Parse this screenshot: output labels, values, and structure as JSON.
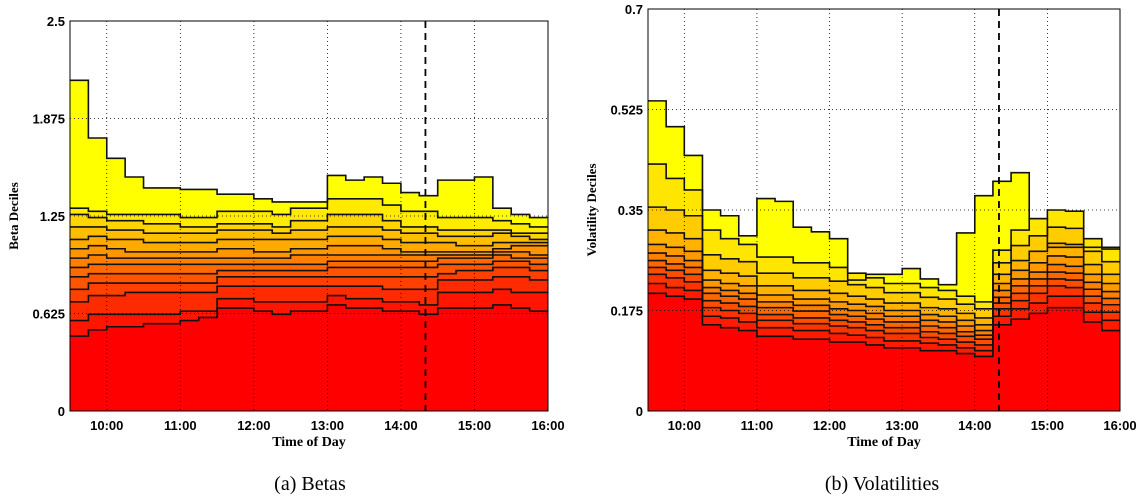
{
  "chart_data": [
    {
      "type": "area",
      "caption": "(a) Betas",
      "xlabel": "Time of Day",
      "ylabel": "Beta Deciles",
      "ylim": [
        0,
        2.5
      ],
      "yticks": [
        "0",
        "0.625",
        "1.25",
        "1.875",
        "2.5"
      ],
      "ytick_values": [
        0,
        0.625,
        1.25,
        1.875,
        2.5
      ],
      "xlim": [
        "09:30",
        "16:00"
      ],
      "xticks": [
        "10:00",
        "11:00",
        "12:00",
        "13:00",
        "14:00",
        "15:00",
        "16:00"
      ],
      "vline": "14:20",
      "grid": true,
      "x_bins": [
        "09:30",
        "09:45",
        "10:00",
        "10:15",
        "10:30",
        "10:45",
        "11:00",
        "11:15",
        "11:30",
        "11:45",
        "12:00",
        "12:15",
        "12:30",
        "12:45",
        "13:00",
        "13:15",
        "13:30",
        "13:45",
        "14:00",
        "14:15",
        "14:30",
        "14:45",
        "15:00",
        "15:15",
        "15:30",
        "15:45",
        "16:00"
      ],
      "series": [
        {
          "values": [
            0.48,
            0.52,
            0.54,
            0.54,
            0.56,
            0.56,
            0.58,
            0.6,
            0.66,
            0.66,
            0.64,
            0.62,
            0.64,
            0.64,
            0.68,
            0.66,
            0.66,
            0.64,
            0.64,
            0.62,
            0.66,
            0.66,
            0.66,
            0.68,
            0.66,
            0.64
          ]
        },
        {
          "values": [
            0.58,
            0.62,
            0.62,
            0.62,
            0.62,
            0.62,
            0.64,
            0.64,
            0.72,
            0.72,
            0.7,
            0.7,
            0.7,
            0.7,
            0.74,
            0.72,
            0.72,
            0.7,
            0.7,
            0.68,
            0.76,
            0.76,
            0.76,
            0.78,
            0.76,
            0.76
          ]
        },
        {
          "values": [
            0.7,
            0.74,
            0.74,
            0.76,
            0.76,
            0.76,
            0.76,
            0.76,
            0.8,
            0.8,
            0.8,
            0.8,
            0.8,
            0.8,
            0.8,
            0.8,
            0.8,
            0.78,
            0.78,
            0.78,
            0.84,
            0.84,
            0.84,
            0.86,
            0.86,
            0.84
          ]
        },
        {
          "values": [
            0.78,
            0.82,
            0.82,
            0.82,
            0.82,
            0.82,
            0.82,
            0.82,
            0.86,
            0.86,
            0.86,
            0.86,
            0.86,
            0.86,
            0.86,
            0.86,
            0.86,
            0.86,
            0.86,
            0.86,
            0.88,
            0.9,
            0.9,
            0.92,
            0.92,
            0.9
          ]
        },
        {
          "values": [
            0.86,
            0.88,
            0.88,
            0.88,
            0.88,
            0.88,
            0.88,
            0.88,
            0.9,
            0.9,
            0.9,
            0.9,
            0.9,
            0.9,
            0.92,
            0.92,
            0.92,
            0.92,
            0.92,
            0.92,
            0.94,
            0.94,
            0.94,
            0.96,
            0.96,
            0.94
          ]
        },
        {
          "values": [
            0.92,
            0.94,
            0.94,
            0.94,
            0.94,
            0.94,
            0.94,
            0.94,
            0.94,
            0.94,
            0.94,
            0.94,
            0.94,
            0.94,
            0.96,
            0.96,
            0.96,
            0.96,
            0.96,
            0.96,
            0.98,
            0.98,
            0.98,
            1.0,
            0.98,
            0.98
          ]
        },
        {
          "values": [
            0.98,
            1.0,
            0.98,
            0.98,
            0.98,
            0.98,
            0.98,
            0.98,
            0.98,
            0.98,
            0.98,
            0.98,
            1.0,
            1.0,
            1.0,
            1.0,
            1.0,
            1.0,
            1.0,
            1.0,
            1.0,
            1.0,
            1.0,
            1.02,
            1.02,
            1.0
          ]
        },
        {
          "values": [
            1.04,
            1.06,
            1.04,
            1.02,
            1.02,
            1.02,
            1.02,
            1.02,
            1.04,
            1.04,
            1.02,
            1.02,
            1.04,
            1.04,
            1.06,
            1.06,
            1.06,
            1.04,
            1.02,
            1.02,
            1.02,
            1.02,
            1.02,
            1.04,
            1.06,
            1.06
          ]
        },
        {
          "values": [
            1.1,
            1.12,
            1.1,
            1.1,
            1.08,
            1.08,
            1.08,
            1.08,
            1.1,
            1.1,
            1.1,
            1.1,
            1.1,
            1.1,
            1.12,
            1.12,
            1.12,
            1.1,
            1.08,
            1.08,
            1.08,
            1.06,
            1.06,
            1.08,
            1.08,
            1.08
          ]
        },
        {
          "values": [
            1.18,
            1.18,
            1.16,
            1.16,
            1.14,
            1.14,
            1.14,
            1.14,
            1.16,
            1.16,
            1.16,
            1.14,
            1.16,
            1.16,
            1.18,
            1.18,
            1.18,
            1.16,
            1.14,
            1.14,
            1.12,
            1.12,
            1.12,
            1.14,
            1.12,
            1.1
          ]
        },
        {
          "values": [
            1.26,
            1.24,
            1.22,
            1.22,
            1.2,
            1.2,
            1.18,
            1.18,
            1.2,
            1.2,
            1.2,
            1.18,
            1.22,
            1.22,
            1.26,
            1.26,
            1.26,
            1.22,
            1.18,
            1.18,
            1.16,
            1.16,
            1.16,
            1.16,
            1.14,
            1.14
          ]
        },
        {
          "values": [
            1.3,
            1.28,
            1.26,
            1.26,
            1.26,
            1.26,
            1.24,
            1.24,
            1.28,
            1.28,
            1.28,
            1.26,
            1.3,
            1.3,
            1.36,
            1.36,
            1.36,
            1.32,
            1.28,
            1.28,
            1.24,
            1.24,
            1.24,
            1.22,
            1.2,
            1.18
          ]
        },
        {
          "values": [
            2.12,
            1.75,
            1.62,
            1.5,
            1.43,
            1.43,
            1.42,
            1.42,
            1.39,
            1.39,
            1.36,
            1.34,
            1.34,
            1.34,
            1.51,
            1.48,
            1.5,
            1.46,
            1.4,
            1.38,
            1.48,
            1.48,
            1.5,
            1.3,
            1.26,
            1.24
          ]
        }
      ]
    },
    {
      "type": "area",
      "caption": "(b) Volatilities",
      "xlabel": "Time of Day",
      "ylabel": "Volatility Deciles",
      "ylim": [
        0,
        0.7
      ],
      "yticks": [
        "0",
        "0.175",
        "0.35",
        "0.525",
        "0.7"
      ],
      "ytick_values": [
        0,
        0.175,
        0.35,
        0.525,
        0.7
      ],
      "xlim": [
        "09:30",
        "16:00"
      ],
      "xticks": [
        "10:00",
        "11:00",
        "12:00",
        "13:00",
        "14:00",
        "15:00",
        "16:00"
      ],
      "vline": "14:20",
      "grid": true,
      "x_bins": [
        "09:30",
        "09:45",
        "10:00",
        "10:15",
        "10:30",
        "10:45",
        "11:00",
        "11:15",
        "11:30",
        "11:45",
        "12:00",
        "12:15",
        "12:30",
        "12:45",
        "13:00",
        "13:15",
        "13:30",
        "13:45",
        "14:00",
        "14:15",
        "14:30",
        "14:45",
        "15:00",
        "15:15",
        "15:30",
        "15:45",
        "16:00"
      ],
      "series": [
        {
          "values": [
            0.205,
            0.2,
            0.195,
            0.15,
            0.145,
            0.14,
            0.13,
            0.13,
            0.125,
            0.125,
            0.12,
            0.12,
            0.115,
            0.11,
            0.11,
            0.105,
            0.105,
            0.1,
            0.095,
            0.15,
            0.16,
            0.17,
            0.18,
            0.18,
            0.155,
            0.14
          ]
        },
        {
          "values": [
            0.222,
            0.215,
            0.21,
            0.165,
            0.162,
            0.155,
            0.145,
            0.145,
            0.14,
            0.14,
            0.135,
            0.132,
            0.128,
            0.122,
            0.122,
            0.118,
            0.115,
            0.11,
            0.105,
            0.165,
            0.178,
            0.188,
            0.2,
            0.2,
            0.172,
            0.158
          ]
        },
        {
          "values": [
            0.238,
            0.232,
            0.225,
            0.18,
            0.175,
            0.17,
            0.158,
            0.158,
            0.152,
            0.152,
            0.148,
            0.145,
            0.14,
            0.135,
            0.135,
            0.128,
            0.125,
            0.12,
            0.115,
            0.178,
            0.192,
            0.205,
            0.218,
            0.215,
            0.188,
            0.172
          ]
        },
        {
          "values": [
            0.25,
            0.245,
            0.238,
            0.192,
            0.188,
            0.182,
            0.168,
            0.168,
            0.162,
            0.162,
            0.158,
            0.155,
            0.15,
            0.145,
            0.145,
            0.138,
            0.135,
            0.13,
            0.125,
            0.188,
            0.205,
            0.218,
            0.23,
            0.228,
            0.2,
            0.185
          ]
        },
        {
          "values": [
            0.262,
            0.256,
            0.25,
            0.205,
            0.2,
            0.195,
            0.18,
            0.18,
            0.174,
            0.174,
            0.168,
            0.165,
            0.16,
            0.155,
            0.155,
            0.148,
            0.145,
            0.138,
            0.132,
            0.198,
            0.218,
            0.23,
            0.242,
            0.24,
            0.212,
            0.196
          ]
        },
        {
          "values": [
            0.275,
            0.27,
            0.262,
            0.215,
            0.21,
            0.205,
            0.19,
            0.19,
            0.184,
            0.184,
            0.178,
            0.175,
            0.17,
            0.165,
            0.165,
            0.158,
            0.155,
            0.148,
            0.14,
            0.21,
            0.23,
            0.242,
            0.255,
            0.252,
            0.224,
            0.208
          ]
        },
        {
          "values": [
            0.29,
            0.285,
            0.278,
            0.228,
            0.222,
            0.218,
            0.202,
            0.202,
            0.195,
            0.195,
            0.19,
            0.186,
            0.182,
            0.175,
            0.175,
            0.168,
            0.165,
            0.158,
            0.15,
            0.222,
            0.245,
            0.258,
            0.27,
            0.268,
            0.238,
            0.222
          ]
        },
        {
          "values": [
            0.315,
            0.31,
            0.3,
            0.245,
            0.24,
            0.235,
            0.218,
            0.218,
            0.21,
            0.21,
            0.205,
            0.2,
            0.195,
            0.188,
            0.188,
            0.18,
            0.178,
            0.17,
            0.162,
            0.238,
            0.262,
            0.278,
            0.292,
            0.29,
            0.255,
            0.238
          ]
        },
        {
          "values": [
            0.355,
            0.35,
            0.34,
            0.272,
            0.265,
            0.26,
            0.24,
            0.24,
            0.232,
            0.232,
            0.226,
            0.22,
            0.215,
            0.206,
            0.206,
            0.198,
            0.195,
            0.186,
            0.178,
            0.258,
            0.288,
            0.305,
            0.32,
            0.318,
            0.278,
            0.26
          ]
        },
        {
          "values": [
            0.43,
            0.405,
            0.385,
            0.315,
            0.3,
            0.29,
            0.268,
            0.268,
            0.258,
            0.258,
            0.25,
            0.24,
            0.232,
            0.222,
            0.222,
            0.215,
            0.21,
            0.2,
            0.19,
            0.28,
            0.315,
            0.335,
            0.35,
            0.348,
            0.3,
            0.282
          ]
        },
        {
          "values": [
            0.54,
            0.495,
            0.445,
            0.35,
            0.34,
            0.305,
            0.37,
            0.365,
            0.32,
            0.312,
            0.3,
            0.228,
            0.238,
            0.238,
            0.248,
            0.23,
            0.22,
            0.31,
            0.375,
            0.4,
            0.415,
            0.335,
            0.285,
            0.285,
            0.285,
            0.285
          ]
        }
      ]
    }
  ]
}
